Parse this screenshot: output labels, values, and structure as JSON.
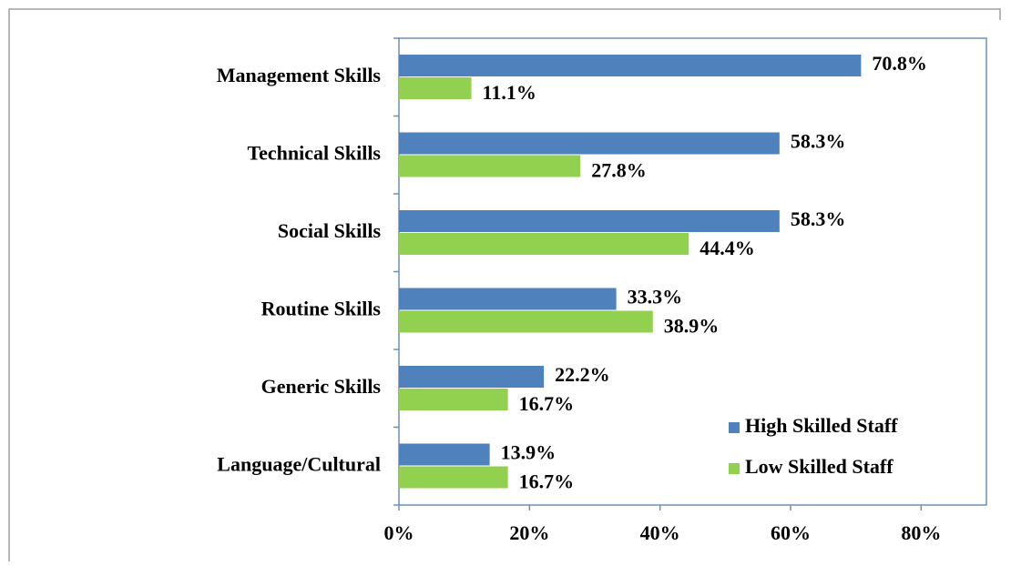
{
  "chart_data": {
    "type": "hbar",
    "categories": [
      "Management Skills",
      "Technical Skills",
      "Social Skills",
      "Routine Skills",
      "Generic Skills",
      "Language/Cultural"
    ],
    "series": [
      {
        "name": "High Skilled Staff",
        "color": "#4f81bd",
        "values": [
          70.8,
          58.3,
          58.3,
          33.3,
          22.2,
          13.9
        ],
        "value_labels": [
          "70.8%",
          "58.3%",
          "58.3%",
          "33.3%",
          "22.2%",
          "13.9%"
        ]
      },
      {
        "name": "Low Skilled Staff",
        "color": "#92d050",
        "values": [
          11.1,
          27.8,
          44.4,
          38.9,
          16.7,
          16.7
        ],
        "value_labels": [
          "11.1%",
          "27.8%",
          "44.4%",
          "38.9%",
          "16.7%",
          "16.7%"
        ]
      }
    ],
    "xlim": [
      0,
      90
    ],
    "xticks": [
      {
        "value": 0,
        "label": "0%"
      },
      {
        "value": 20,
        "label": "20%"
      },
      {
        "value": 40,
        "label": "40%"
      },
      {
        "value": 60,
        "label": "60%"
      },
      {
        "value": 80,
        "label": "80%"
      }
    ],
    "legend": "lower right"
  }
}
